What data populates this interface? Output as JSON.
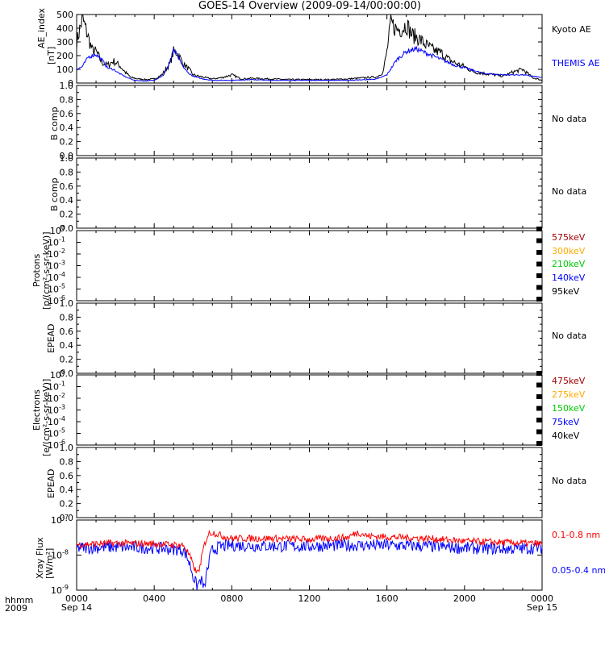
{
  "title": "GOES-14 Overview (2009-09-14/00:00:00)",
  "axis": {
    "time_label_top": "hhmm",
    "time_label_bottom": "2009",
    "ticks": [
      "0000",
      "0400",
      "0800",
      "1200",
      "1600",
      "2000",
      "0000"
    ],
    "tick_sublabels": [
      "Sep 14",
      "",
      "",
      "",
      "",
      "",
      "Sep 15"
    ]
  },
  "colors": {
    "black": "#000000",
    "blue": "#0000ff",
    "red": "#ff0000",
    "darkred": "#a00000",
    "orange": "#ffaa00",
    "green": "#00cc00"
  },
  "panels": {
    "ae": {
      "ylabel1": "AE_index",
      "ylabel2": "[nT]",
      "legend": [
        "Kyoto AE",
        "THEMIS AE"
      ]
    },
    "bcomp1": {
      "ylabel": "B comp",
      "nodata": "No data"
    },
    "bcomp2": {
      "ylabel": "B comp",
      "nodata": "No data"
    },
    "protons": {
      "ylabel1": "Protons",
      "ylabel2": "[p/(cm²-s-sr-keV)]",
      "legend": [
        "575keV",
        "300keV",
        "210keV",
        "140keV",
        "95keV"
      ]
    },
    "epead1": {
      "ylabel": "EPEAD",
      "nodata": "No data"
    },
    "electrons": {
      "ylabel1": "Electrons",
      "ylabel2": "[e/(cm²-s-sr-keV)]",
      "legend": [
        "475keV",
        "275keV",
        "150keV",
        "75keV",
        "40keV"
      ]
    },
    "epead2": {
      "ylabel": "EPEAD",
      "nodata": "No data"
    },
    "xray": {
      "ylabel1": "Xray Flux",
      "ylabel2": "[W/m²]",
      "legend": [
        "0.1-0.8 nm",
        "0.05-0.4 nm"
      ]
    }
  },
  "chart_data": [
    {
      "type": "line",
      "panel": "ae",
      "xlabel": "",
      "ylabel": "AE_index [nT]",
      "xlim_hours": [
        0,
        24
      ],
      "ylim": [
        0,
        500
      ],
      "yticks": [
        0,
        100,
        200,
        300,
        400,
        500
      ],
      "series": [
        {
          "name": "Kyoto AE",
          "x": [
            0,
            0.3,
            0.5,
            0.8,
            1.0,
            1.3,
            1.6,
            1.9,
            2.2,
            2.5,
            2.8,
            3.2,
            3.6,
            4.0,
            4.4,
            4.8,
            5.0,
            5.2,
            5.5,
            5.8,
            6.0,
            6.3,
            6.6,
            7.0,
            7.5,
            8.0,
            8.5,
            9.0,
            10,
            11,
            12,
            13,
            14,
            15,
            15.5,
            15.8,
            16.0,
            16.2,
            16.5,
            16.8,
            17.0,
            17.3,
            17.6,
            18.0,
            18.4,
            18.8,
            19.2,
            19.6,
            20.0,
            20.5,
            21.0,
            21.5,
            22.0,
            22.5,
            23.0,
            23.5,
            24
          ],
          "y": [
            300,
            470,
            380,
            240,
            230,
            150,
            130,
            160,
            130,
            80,
            40,
            30,
            25,
            30,
            60,
            140,
            230,
            220,
            140,
            100,
            60,
            50,
            40,
            30,
            40,
            60,
            30,
            35,
            30,
            25,
            25,
            25,
            30,
            40,
            45,
            80,
            230,
            440,
            390,
            400,
            430,
            350,
            330,
            280,
            240,
            220,
            170,
            140,
            120,
            80,
            70,
            60,
            50,
            80,
            100,
            40,
            20
          ]
        },
        {
          "name": "THEMIS AE",
          "x": [
            0,
            0.3,
            0.6,
            1.0,
            1.3,
            1.6,
            1.9,
            2.2,
            2.6,
            3.0,
            3.5,
            4.0,
            4.5,
            4.8,
            5.0,
            5.2,
            5.4,
            5.7,
            6.0,
            6.5,
            7.0,
            8.0,
            9.0,
            10,
            11,
            12,
            13,
            14,
            15,
            15.5,
            16.0,
            16.5,
            17.0,
            17.5,
            18.0,
            18.5,
            19.0,
            19.5,
            20.0,
            20.5,
            21,
            22,
            23,
            24
          ],
          "y": [
            100,
            120,
            190,
            210,
            170,
            110,
            100,
            70,
            40,
            20,
            15,
            20,
            60,
            150,
            240,
            200,
            140,
            80,
            50,
            30,
            20,
            20,
            25,
            20,
            20,
            20,
            20,
            20,
            25,
            30,
            60,
            170,
            230,
            250,
            220,
            190,
            160,
            130,
            110,
            90,
            70,
            60,
            60,
            40
          ]
        }
      ]
    },
    {
      "type": "line",
      "panel": "xray",
      "ylabel": "Xray Flux [W/m²]",
      "xlim_hours": [
        0,
        24
      ],
      "ylim": [
        1e-09,
        1e-07
      ],
      "log_y": true,
      "series": [
        {
          "name": "0.1-0.8 nm",
          "x": [
            0,
            2,
            4,
            5.5,
            5.8,
            6.0,
            6.2,
            6.4,
            6.6,
            6.8,
            7.0,
            7.5,
            8,
            10,
            12,
            14,
            14.5,
            15,
            16,
            18,
            20,
            22,
            24
          ],
          "y": [
            2e-08,
            2.2e-08,
            2.1e-08,
            1.9e-08,
            1e-08,
            5e-09,
            3e-09,
            5e-09,
            2e-08,
            4e-08,
            4.5e-08,
            3.5e-08,
            3e-08,
            3e-08,
            2.8e-08,
            3.2e-08,
            4.5e-08,
            3.5e-08,
            3.3e-08,
            3e-08,
            2.5e-08,
            2.3e-08,
            2.1e-08
          ]
        },
        {
          "name": "0.05-0.4 nm",
          "x": [
            0,
            2,
            4,
            5.5,
            5.8,
            6.0,
            6.2,
            6.4,
            6.6,
            6.8,
            7.0,
            7.5,
            8,
            10,
            12,
            14,
            16,
            18,
            20,
            22,
            24
          ],
          "y": [
            1.6e-08,
            1.7e-08,
            1.6e-08,
            1.4e-08,
            6e-09,
            2.5e-09,
            1.2e-09,
            2e-09,
            1e-09,
            5e-09,
            1.4e-08,
            1.8e-08,
            1.9e-08,
            1.8e-08,
            1.8e-08,
            1.9e-08,
            1.9e-08,
            1.8e-08,
            1.6e-08,
            1.5e-08,
            1.6e-08
          ]
        }
      ]
    }
  ]
}
